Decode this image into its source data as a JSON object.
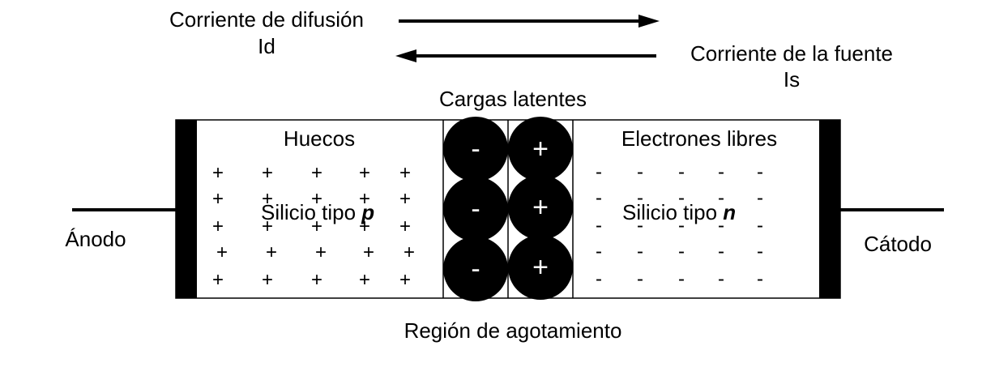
{
  "labels": {
    "diffusion_current": "Corriente de difusión",
    "diffusion_symbol": "Id",
    "source_current": "Corriente de la fuente",
    "source_symbol": "Is",
    "latent_charges": "Cargas latentes",
    "holes": "Huecos",
    "free_electrons": "Electrones libres",
    "p_region_prefix": "Silicio tipo",
    "p_region_letter": "p",
    "n_region_prefix": "Silicio tipo",
    "n_region_letter": "n",
    "anode": "Ánodo",
    "cathode": "Cátodo",
    "depletion_region": "Región de agotamiento"
  },
  "symbols": {
    "hole": "+",
    "electron": "-",
    "negative_ion": "-",
    "positive_ion": "+"
  },
  "colors": {
    "ink": "#000000",
    "background": "#ffffff",
    "ion_text": "#ffffff"
  }
}
